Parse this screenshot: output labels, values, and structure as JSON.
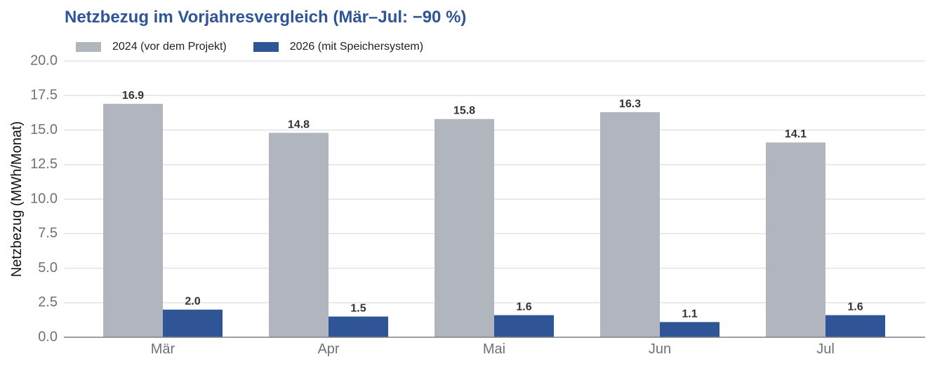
{
  "chart_data": {
    "type": "bar",
    "title": "Netzbezug im Vorjahresvergleich (Mär–Jul: −90 %)",
    "xlabel": "",
    "ylabel": "Netzbezug (MWh/Monat)",
    "categories": [
      "Mär",
      "Apr",
      "Mai",
      "Jun",
      "Jul"
    ],
    "series": [
      {
        "name": "2024 (vor dem Projekt)",
        "color": "#b0b5be",
        "values": [
          16.9,
          14.8,
          15.8,
          16.3,
          14.1
        ],
        "labels": [
          "16.9",
          "14.8",
          "15.8",
          "16.3",
          "14.1"
        ]
      },
      {
        "name": "2026 (mit Speichersystem)",
        "color": "#2f5597",
        "values": [
          2.0,
          1.5,
          1.6,
          1.1,
          1.6
        ],
        "labels": [
          "2.0",
          "1.5",
          "1.6",
          "1.1",
          "1.6"
        ]
      }
    ],
    "ylim": [
      0,
      20
    ],
    "y_ticks": [
      "0.0",
      "2.5",
      "5.0",
      "7.5",
      "10.0",
      "12.5",
      "15.0",
      "17.5",
      "20.0"
    ],
    "grid": "horizontal",
    "legend_position": "top-left"
  }
}
